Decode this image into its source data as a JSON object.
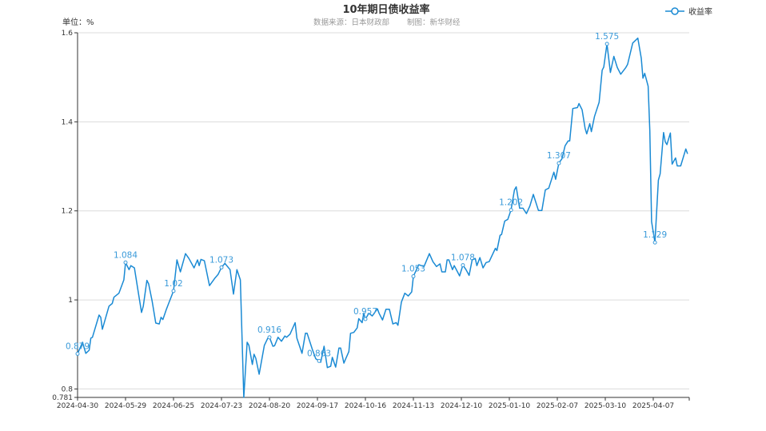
{
  "header": {
    "title": "10年期日债收益率",
    "source": "数据来源：日本财政部",
    "credit": "制图：新华财经",
    "unit": "单位：%"
  },
  "legend": {
    "label": "收益率",
    "icon": "line-circle-icon"
  },
  "colors": {
    "line": "#1a8ad4",
    "label": "#3a9ad9",
    "grid": "#dcdcdc",
    "axis": "#333333"
  },
  "chart_data": {
    "type": "line",
    "title": "10年期日债收益率",
    "ylabel": "单位：%",
    "ylim": [
      0.781,
      1.6
    ],
    "yticks": [
      "0.781",
      "0.8",
      "1",
      "1.2",
      "1.4",
      "1.6"
    ],
    "xticks": [
      "2024-04-30",
      "2024-05-29",
      "2024-06-25",
      "2024-07-23",
      "2024-08-20",
      "2024-09-17",
      "2024-10-16",
      "2024-11-13",
      "2024-12-10",
      "2025-01-10",
      "2025-02-07",
      "2025-03-10",
      "2025-04-07"
    ],
    "grid": true,
    "legend_position": "top-right",
    "series": [
      {
        "name": "收益率",
        "points": [
          [
            "2024-04-30",
            0.879
          ],
          [
            "2024-05-03",
            0.905
          ],
          [
            "2024-05-05",
            0.88
          ],
          [
            "2024-05-07",
            0.887
          ],
          [
            "2024-05-08",
            0.914
          ],
          [
            "2024-05-09",
            0.916
          ],
          [
            "2024-05-13",
            0.966
          ],
          [
            "2024-05-14",
            0.961
          ],
          [
            "2024-05-15",
            0.934
          ],
          [
            "2024-05-19",
            0.986
          ],
          [
            "2024-05-21",
            0.992
          ],
          [
            "2024-05-22",
            1.006
          ],
          [
            "2024-05-25",
            1.015
          ],
          [
            "2024-05-28",
            1.045
          ],
          [
            "2024-05-29",
            1.084
          ],
          [
            "2024-05-31",
            1.068
          ],
          [
            "2024-06-01",
            1.077
          ],
          [
            "2024-06-03",
            1.072
          ],
          [
            "2024-06-05",
            1.021
          ],
          [
            "2024-06-07",
            0.972
          ],
          [
            "2024-06-08",
            0.986
          ],
          [
            "2024-06-10",
            1.044
          ],
          [
            "2024-06-11",
            1.036
          ],
          [
            "2024-06-13",
            0.997
          ],
          [
            "2024-06-15",
            0.948
          ],
          [
            "2024-06-17",
            0.946
          ],
          [
            "2024-06-18",
            0.961
          ],
          [
            "2024-06-19",
            0.956
          ],
          [
            "2024-06-21",
            0.979
          ],
          [
            "2024-06-23",
            1.0
          ],
          [
            "2024-06-25",
            1.02
          ],
          [
            "2024-06-27",
            1.09
          ],
          [
            "2024-06-29",
            1.063
          ],
          [
            "2024-07-02",
            1.104
          ],
          [
            "2024-07-04",
            1.093
          ],
          [
            "2024-07-07",
            1.072
          ],
          [
            "2024-07-09",
            1.09
          ],
          [
            "2024-07-10",
            1.077
          ],
          [
            "2024-07-11",
            1.091
          ],
          [
            "2024-07-13",
            1.088
          ],
          [
            "2024-07-16",
            1.032
          ],
          [
            "2024-07-19",
            1.048
          ],
          [
            "2024-07-21",
            1.057
          ],
          [
            "2024-07-23",
            1.073
          ],
          [
            "2024-07-25",
            1.082
          ],
          [
            "2024-07-28",
            1.068
          ],
          [
            "2024-07-30",
            1.013
          ],
          [
            "2024-08-01",
            1.068
          ],
          [
            "2024-08-03",
            1.045
          ],
          [
            "2024-08-05",
            0.781
          ],
          [
            "2024-08-07",
            0.905
          ],
          [
            "2024-08-08",
            0.898
          ],
          [
            "2024-08-10",
            0.855
          ],
          [
            "2024-08-11",
            0.878
          ],
          [
            "2024-08-12",
            0.869
          ],
          [
            "2024-08-14",
            0.833
          ],
          [
            "2024-08-17",
            0.898
          ],
          [
            "2024-08-19",
            0.914
          ],
          [
            "2024-08-20",
            0.916
          ],
          [
            "2024-08-22",
            0.896
          ],
          [
            "2024-08-23",
            0.897
          ],
          [
            "2024-08-25",
            0.916
          ],
          [
            "2024-08-27",
            0.907
          ],
          [
            "2024-08-29",
            0.919
          ],
          [
            "2024-08-30",
            0.916
          ],
          [
            "2024-09-01",
            0.923
          ],
          [
            "2024-09-04",
            0.949
          ],
          [
            "2024-09-05",
            0.914
          ],
          [
            "2024-09-08",
            0.88
          ],
          [
            "2024-09-10",
            0.925
          ],
          [
            "2024-09-11",
            0.925
          ],
          [
            "2024-09-14",
            0.889
          ],
          [
            "2024-09-16",
            0.868
          ],
          [
            "2024-09-18",
            0.863
          ],
          [
            "2024-09-19",
            0.86
          ],
          [
            "2024-09-21",
            0.896
          ],
          [
            "2024-09-23",
            0.848
          ],
          [
            "2024-09-25",
            0.851
          ],
          [
            "2024-09-26",
            0.871
          ],
          [
            "2024-09-28",
            0.849
          ],
          [
            "2024-09-30",
            0.892
          ],
          [
            "2024-10-01",
            0.892
          ],
          [
            "2024-10-03",
            0.858
          ],
          [
            "2024-10-04",
            0.867
          ],
          [
            "2024-10-06",
            0.884
          ],
          [
            "2024-10-07",
            0.925
          ],
          [
            "2024-10-09",
            0.927
          ],
          [
            "2024-10-11",
            0.937
          ],
          [
            "2024-10-12",
            0.958
          ],
          [
            "2024-10-14",
            0.949
          ],
          [
            "2024-10-15",
            0.97
          ],
          [
            "2024-10-16",
            0.957
          ],
          [
            "2024-10-18",
            0.97
          ],
          [
            "2024-10-20",
            0.964
          ],
          [
            "2024-10-23",
            0.98
          ],
          [
            "2024-10-24",
            0.97
          ],
          [
            "2024-10-26",
            0.955
          ],
          [
            "2024-10-28",
            0.979
          ],
          [
            "2024-10-30",
            0.979
          ],
          [
            "2024-11-01",
            0.946
          ],
          [
            "2024-11-03",
            0.949
          ],
          [
            "2024-11-04",
            0.943
          ],
          [
            "2024-11-06",
            0.995
          ],
          [
            "2024-11-08",
            1.015
          ],
          [
            "2024-11-10",
            1.009
          ],
          [
            "2024-11-12",
            1.018
          ],
          [
            "2024-11-13",
            1.053
          ],
          [
            "2024-11-16",
            1.079
          ],
          [
            "2024-11-19",
            1.075
          ],
          [
            "2024-11-22",
            1.104
          ],
          [
            "2024-11-24",
            1.086
          ],
          [
            "2024-11-26",
            1.075
          ],
          [
            "2024-11-28",
            1.081
          ],
          [
            "2024-11-29",
            1.063
          ],
          [
            "2024-12-01",
            1.063
          ],
          [
            "2024-12-02",
            1.09
          ],
          [
            "2024-12-03",
            1.09
          ],
          [
            "2024-12-05",
            1.068
          ],
          [
            "2024-12-06",
            1.077
          ],
          [
            "2024-12-09",
            1.054
          ],
          [
            "2024-12-11",
            1.078
          ],
          [
            "2024-12-13",
            1.068
          ],
          [
            "2024-12-15",
            1.055
          ],
          [
            "2024-12-17",
            1.09
          ],
          [
            "2024-12-19",
            1.093
          ],
          [
            "2024-12-20",
            1.077
          ],
          [
            "2024-12-22",
            1.095
          ],
          [
            "2024-12-24",
            1.072
          ],
          [
            "2024-12-26",
            1.084
          ],
          [
            "2024-12-28",
            1.086
          ],
          [
            "2025-01-01",
            1.116
          ],
          [
            "2025-01-02",
            1.111
          ],
          [
            "2025-01-04",
            1.145
          ],
          [
            "2025-01-05",
            1.147
          ],
          [
            "2025-01-07",
            1.177
          ],
          [
            "2025-01-09",
            1.181
          ],
          [
            "2025-01-11",
            1.202
          ],
          [
            "2025-01-13",
            1.247
          ],
          [
            "2025-01-14",
            1.254
          ],
          [
            "2025-01-16",
            1.206
          ],
          [
            "2025-01-18",
            1.206
          ],
          [
            "2025-01-20",
            1.194
          ],
          [
            "2025-01-22",
            1.211
          ],
          [
            "2025-01-24",
            1.237
          ],
          [
            "2025-01-27",
            1.201
          ],
          [
            "2025-01-29",
            1.201
          ],
          [
            "2025-01-31",
            1.247
          ],
          [
            "2025-02-02",
            1.251
          ],
          [
            "2025-02-05",
            1.287
          ],
          [
            "2025-02-06",
            1.271
          ],
          [
            "2025-02-08",
            1.307
          ],
          [
            "2025-02-10",
            1.317
          ],
          [
            "2025-02-12",
            1.346
          ],
          [
            "2025-02-14",
            1.357
          ],
          [
            "2025-02-15",
            1.357
          ],
          [
            "2025-02-17",
            1.43
          ],
          [
            "2025-02-20",
            1.432
          ],
          [
            "2025-02-21",
            1.441
          ],
          [
            "2025-02-23",
            1.427
          ],
          [
            "2025-02-25",
            1.385
          ],
          [
            "2025-02-26",
            1.373
          ],
          [
            "2025-02-28",
            1.396
          ],
          [
            "2025-03-01",
            1.378
          ],
          [
            "2025-03-03",
            1.412
          ],
          [
            "2025-03-06",
            1.444
          ],
          [
            "2025-03-08",
            1.516
          ],
          [
            "2025-03-09",
            1.523
          ],
          [
            "2025-03-11",
            1.575
          ],
          [
            "2025-03-13",
            1.511
          ],
          [
            "2025-03-15",
            1.547
          ],
          [
            "2025-03-17",
            1.522
          ],
          [
            "2025-03-19",
            1.507
          ],
          [
            "2025-03-22",
            1.522
          ],
          [
            "2025-03-23",
            1.529
          ],
          [
            "2025-03-26",
            1.577
          ],
          [
            "2025-03-29",
            1.588
          ],
          [
            "2025-03-31",
            1.543
          ],
          [
            "2025-04-01",
            1.498
          ],
          [
            "2025-04-02",
            1.509
          ],
          [
            "2025-04-04",
            1.48
          ],
          [
            "2025-04-05",
            1.38
          ],
          [
            "2025-04-06",
            1.176
          ],
          [
            "2025-04-08",
            1.129
          ],
          [
            "2025-04-10",
            1.269
          ],
          [
            "2025-04-11",
            1.283
          ],
          [
            "2025-04-13",
            1.376
          ],
          [
            "2025-04-14",
            1.355
          ],
          [
            "2025-04-15",
            1.349
          ],
          [
            "2025-04-17",
            1.375
          ],
          [
            "2025-04-18",
            1.305
          ],
          [
            "2025-04-20",
            1.319
          ],
          [
            "2025-04-21",
            1.301
          ],
          [
            "2025-04-23",
            1.301
          ],
          [
            "2025-04-26",
            1.339
          ],
          [
            "2025-04-27",
            1.328
          ]
        ]
      }
    ],
    "annotations": [
      {
        "date": "2024-04-30",
        "text": "0.879"
      },
      {
        "date": "2024-05-29",
        "text": "1.084"
      },
      {
        "date": "2024-06-25",
        "text": "1.02"
      },
      {
        "date": "2024-07-23",
        "text": "1.073"
      },
      {
        "date": "2024-08-20",
        "text": "0.916"
      },
      {
        "date": "2024-09-18",
        "text": "0.863"
      },
      {
        "date": "2024-10-16",
        "text": "0.957"
      },
      {
        "date": "2024-11-13",
        "text": "1.053"
      },
      {
        "date": "2024-12-11",
        "text": "1.078"
      },
      {
        "date": "2025-01-11",
        "text": "1.202"
      },
      {
        "date": "2025-02-08",
        "text": "1.307"
      },
      {
        "date": "2025-03-11",
        "text": "1.575"
      },
      {
        "date": "2025-04-08",
        "text": "1.129"
      }
    ]
  }
}
